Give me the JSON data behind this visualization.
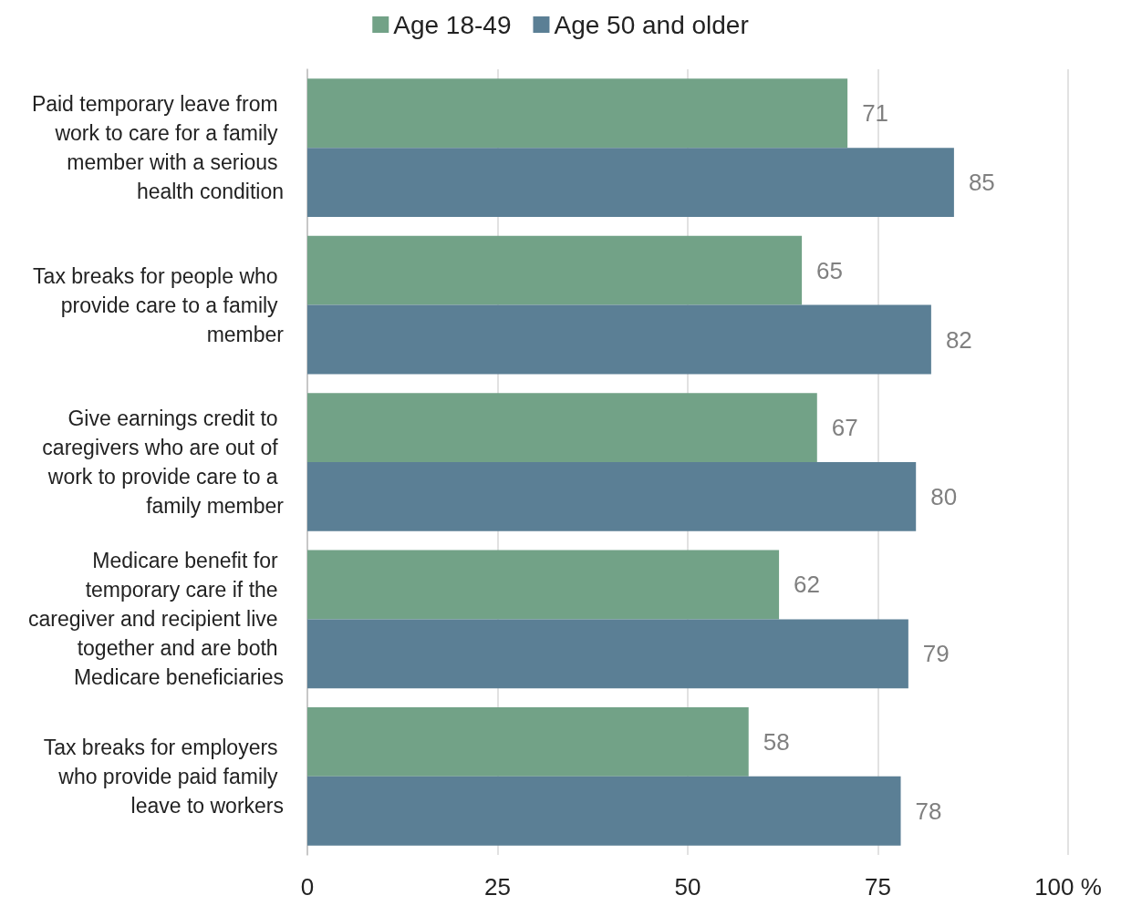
{
  "chart_data": {
    "type": "bar",
    "orientation": "horizontal",
    "categories": [
      "Paid temporary leave from work to care for a family member with a serious health condition",
      "Tax breaks for people who provide care to a family member",
      "Give earnings credit to caregivers who are out of work to provide care to a family member",
      "Medicare benefit for temporary care if the caregiver and recipient live together and are both Medicare beneficiaries",
      "Tax breaks for employers who provide paid family leave to workers"
    ],
    "series": [
      {
        "name": "Age 18-49",
        "color": "#72a287",
        "values": [
          71,
          65,
          67,
          62,
          58
        ]
      },
      {
        "name": "Age 50 and older",
        "color": "#5b7f95",
        "values": [
          85,
          82,
          80,
          79,
          78
        ]
      }
    ],
    "xlim": [
      0,
      100
    ],
    "xticks": [
      0,
      25,
      50,
      75,
      {
        "value": 100,
        "label": "100 %"
      }
    ],
    "grid": "x",
    "legend": "top",
    "data_labels": true
  }
}
